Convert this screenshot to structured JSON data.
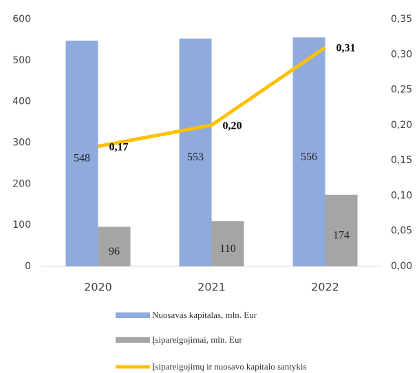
{
  "chart_data": {
    "type": "bar",
    "categories": [
      "2020",
      "2021",
      "2022"
    ],
    "series": [
      {
        "name": "Nuosavas kapitalas, mln. Eur",
        "color": "#8faadc",
        "values": [
          548,
          553,
          556
        ]
      },
      {
        "name": "Įsipareigojimai, mln. Eur",
        "color": "#a5a5a5",
        "values": [
          96,
          110,
          174
        ]
      },
      {
        "name": "Įsipareigojimų ir nuosavo kapitalo santykis",
        "type": "line",
        "axis": "y2",
        "color": "#ffc000",
        "values": [
          0.17,
          0.2,
          0.31
        ],
        "value_labels": [
          "0,17",
          "0,20",
          "0,31"
        ]
      }
    ],
    "ylim": [
      0,
      600
    ],
    "yticks": [
      0,
      100,
      200,
      300,
      400,
      500,
      600
    ],
    "y2lim": [
      0,
      0.35
    ],
    "y2ticks": [
      {
        "value": 0,
        "label": "0,00"
      },
      {
        "value": 0.05,
        "label": "0,05"
      },
      {
        "value": 0.1,
        "label": "0,10"
      },
      {
        "value": 0.15,
        "label": "0,15"
      },
      {
        "value": 0.2,
        "label": "0,20"
      },
      {
        "value": 0.25,
        "label": "0,25"
      },
      {
        "value": 0.3,
        "label": "0,30"
      },
      {
        "value": 0.35,
        "label": "0,35"
      }
    ],
    "grid": false,
    "legend": "bottom"
  }
}
